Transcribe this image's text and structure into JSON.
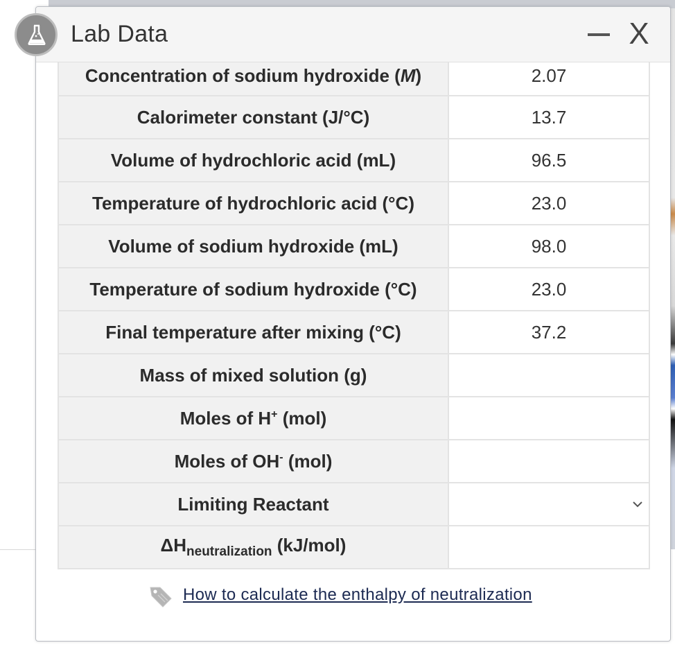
{
  "window": {
    "title": "Lab Data",
    "minimize_label": "—",
    "close_label": "X"
  },
  "icons": {
    "badge": "flask-icon",
    "link": "tag-icon",
    "dropdown": "chevron-down-icon"
  },
  "rows": [
    {
      "label": "Concentration of sodium hydroxide (",
      "label_italic": "M",
      "label_end": ")",
      "value": "2.07"
    },
    {
      "label": "Calorimeter constant (J/°C)",
      "value": "13.7"
    },
    {
      "label": "Volume of hydrochloric acid (mL)",
      "value": "96.5"
    },
    {
      "label": "Temperature of hydrochloric acid (°C)",
      "value": "23.0"
    },
    {
      "label": "Volume of sodium hydroxide (mL)",
      "value": "98.0"
    },
    {
      "label": "Temperature of sodium hydroxide (°C)",
      "value": "23.0"
    },
    {
      "label": "Final temperature after mixing (°C)",
      "value": "37.2"
    },
    {
      "label": "Mass of mixed solution (g)",
      "value": ""
    },
    {
      "label_pre": "Moles of H",
      "label_sup": "+",
      "label_post": " (mol)",
      "value": ""
    },
    {
      "label_pre": "Moles of OH",
      "label_sup": "-",
      "label_post": " (mol)",
      "value": ""
    },
    {
      "label": "Limiting Reactant",
      "value": ""
    },
    {
      "label_pre": "ΔH",
      "label_sub": "neutralization",
      "label_post": " (kJ/mol)",
      "value": ""
    }
  ],
  "help_link": "How to calculate the enthalpy of neutralization",
  "colors": {
    "header_bg": "#f5f5f5",
    "label_cell_bg": "#f1f1f1",
    "link": "#1c2a52",
    "badge": "#8c8c8c"
  }
}
